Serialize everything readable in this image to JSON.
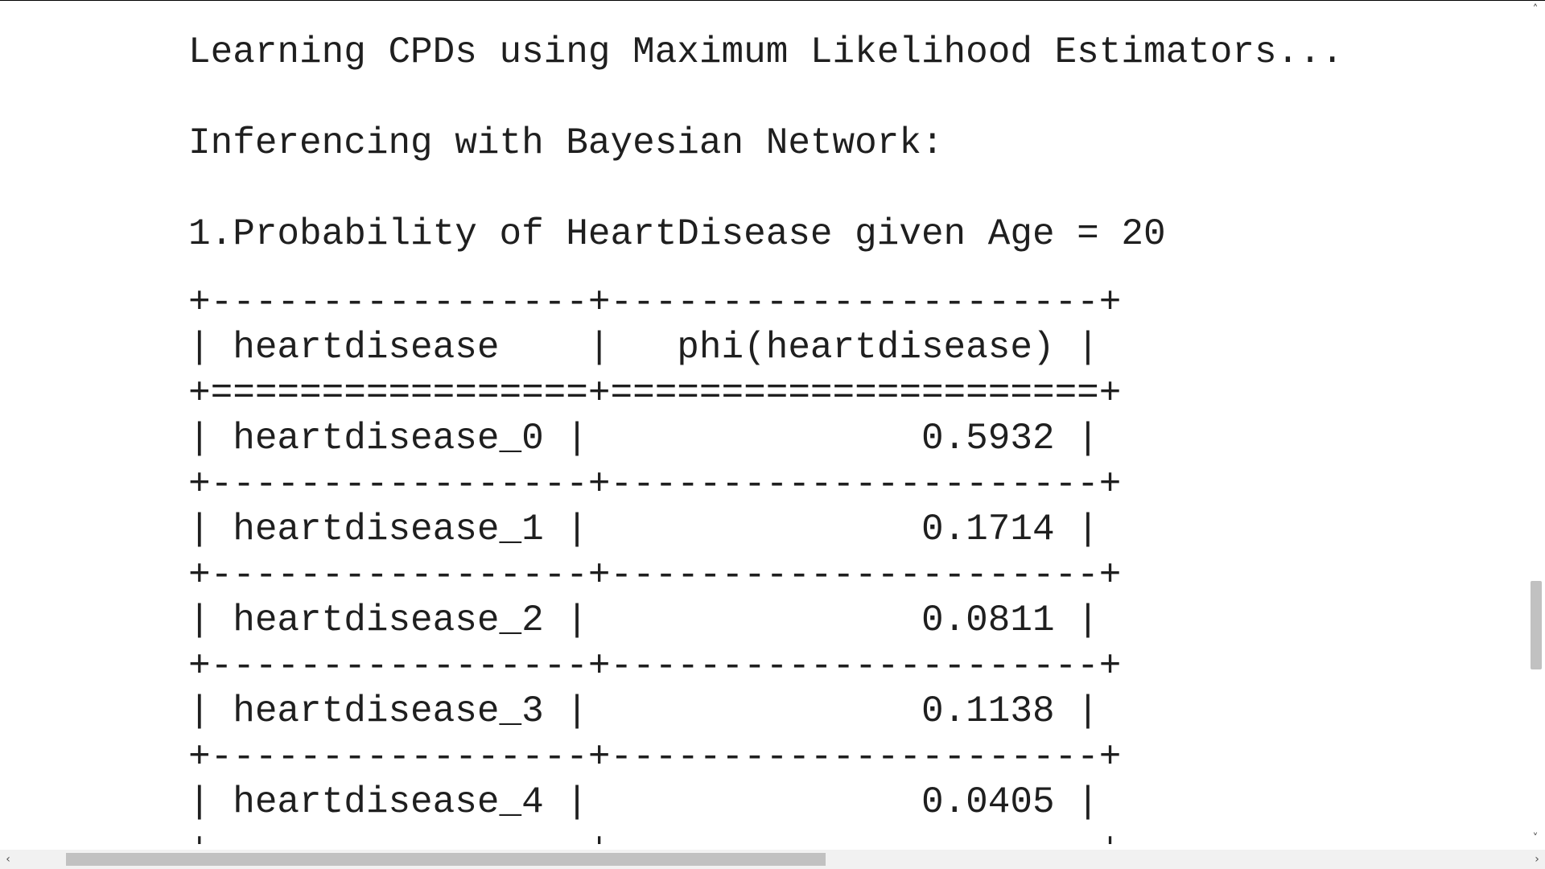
{
  "output": {
    "lines": [
      "Learning CPDs using Maximum Likelihood Estimators...",
      "Inferencing with Bayesian Network:",
      "1.Probability of HeartDisease given Age = 20",
      "+-----------------+----------------------+",
      "| heartdisease    |   phi(heartdisease) |",
      "+=================+======================+",
      "| heartdisease_0 |               0.5932 |",
      "+-----------------+----------------------+",
      "| heartdisease_1 |               0.1714 |",
      "+-----------------+----------------------+",
      "| heartdisease_2 |               0.0811 |",
      "+-----------------+----------------------+",
      "| heartdisease_3 |               0.1138 |",
      "+-----------------+----------------------+",
      "| heartdisease_4 |               0.0405 |",
      "+-----------------+----------------------+"
    ]
  },
  "scrollbars": {
    "up_arrow": "˄",
    "down_arrow": "˅",
    "left_arrow": "‹",
    "right_arrow": "›"
  }
}
